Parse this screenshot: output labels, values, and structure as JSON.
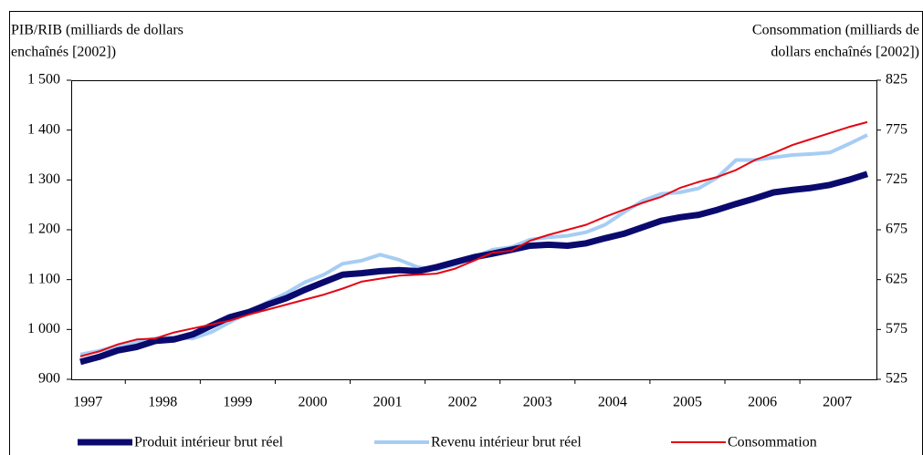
{
  "chart_data": {
    "type": "line",
    "y_label_lines": [
      "PIB/RIB (milliards de dollars",
      "enchaînés [2002])"
    ],
    "y2_label_lines": [
      "Consommation (milliards de",
      "dollars enchaînés [2002])"
    ],
    "categories": [
      "1997",
      null,
      null,
      null,
      "1998",
      null,
      null,
      null,
      "1999",
      null,
      null,
      null,
      "2000",
      null,
      null,
      null,
      "2001",
      null,
      null,
      null,
      "2002",
      null,
      null,
      null,
      "2003",
      null,
      null,
      null,
      "2004",
      null,
      null,
      null,
      "2005",
      null,
      null,
      null,
      "2006",
      null,
      null,
      null,
      "2007",
      null,
      null
    ],
    "ylim": [
      900,
      1500
    ],
    "yticks": [
      {
        "value": 900,
        "label": "900"
      },
      {
        "value": 1000,
        "label": "1 000"
      },
      {
        "value": 1100,
        "label": "1 100"
      },
      {
        "value": 1200,
        "label": "1 200"
      },
      {
        "value": 1300,
        "label": "1 300"
      },
      {
        "value": 1400,
        "label": "1 400"
      },
      {
        "value": 1500,
        "label": "1 500"
      }
    ],
    "y2lim": [
      525,
      825
    ],
    "y2ticks": [
      525,
      575,
      625,
      675,
      725,
      775,
      825
    ],
    "grid": false,
    "legend": "bottom",
    "series": [
      {
        "name": "Produit intérieur brut réel",
        "color": "#0a0a6e",
        "width": 7,
        "values": [
          935,
          945,
          958,
          965,
          977,
          980,
          990,
          1008,
          1025,
          1035,
          1050,
          1063,
          1080,
          1095,
          1110,
          1113,
          1117,
          1119,
          1117,
          1125,
          1135,
          1145,
          1152,
          1160,
          1168,
          1170,
          1168,
          1173,
          1183,
          1192,
          1205,
          1218,
          1225,
          1230,
          1240,
          1252,
          1263,
          1275,
          1280,
          1284,
          1290,
          1300,
          1312
        ]
      },
      {
        "name": "Revenu intérieur brut réel",
        "color": "#a6cdf4",
        "width": 4,
        "values": [
          950,
          957,
          967,
          975,
          982,
          984,
          982,
          995,
          1015,
          1035,
          1055,
          1073,
          1095,
          1110,
          1132,
          1138,
          1150,
          1140,
          1125,
          1120,
          1130,
          1145,
          1160,
          1165,
          1180,
          1185,
          1188,
          1195,
          1210,
          1235,
          1258,
          1272,
          1275,
          1283,
          1305,
          1340,
          1340,
          1345,
          1350,
          1352,
          1355,
          1372,
          1390
        ]
      },
      {
        "name": "Consommation",
        "color": "#e30613",
        "width": 2,
        "axis": "y2",
        "values": [
          548,
          553,
          560,
          565,
          566,
          572,
          576,
          580,
          584,
          590,
          595,
          600,
          605,
          610,
          616,
          623,
          626,
          629,
          630,
          631,
          636,
          644,
          652,
          654,
          664,
          670,
          675,
          680,
          688,
          695,
          702,
          708,
          717,
          723,
          728,
          735,
          745,
          752,
          760,
          766,
          772,
          778,
          783
        ]
      }
    ]
  }
}
